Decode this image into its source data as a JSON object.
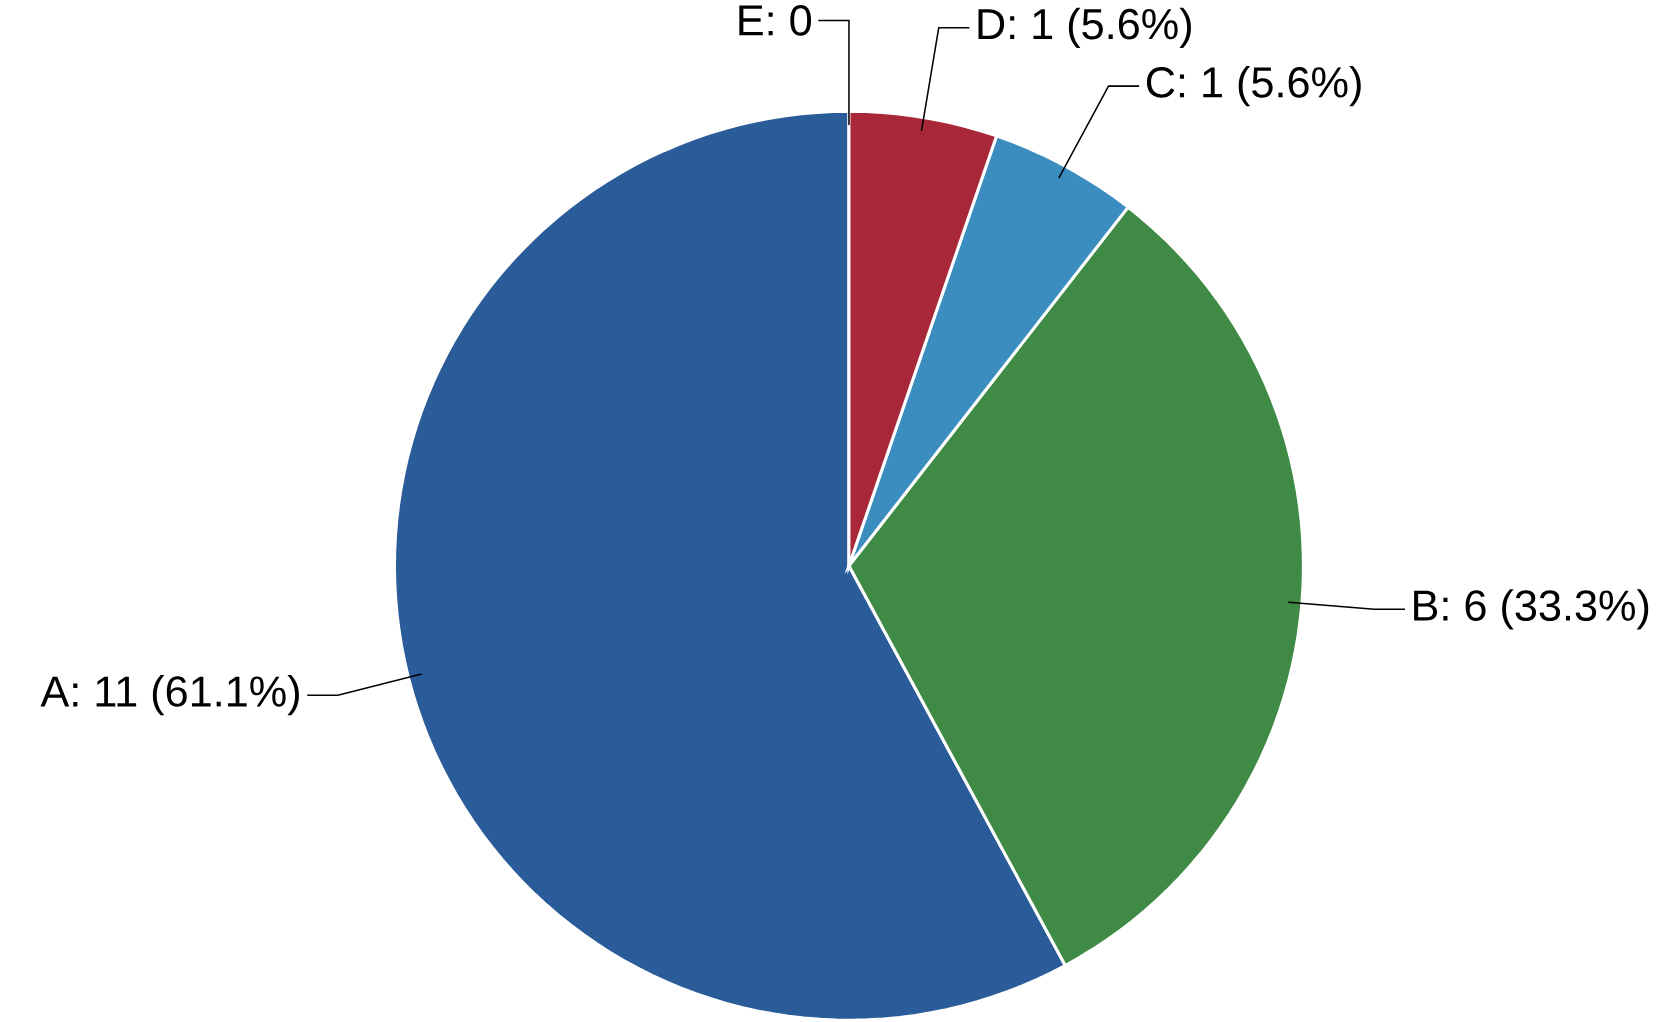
{
  "chart_data": {
    "type": "pie",
    "categories": [
      "A: 11  (61.1%)",
      "B: 6  (33.3%)",
      "C: 1  (5.6%)",
      "D: 1  (5.6%)",
      "E: 0"
    ],
    "values": [
      11,
      6,
      1,
      1,
      0
    ],
    "colors": [
      "#2b5c9a",
      "#3f8a45",
      "#3b8dbf",
      "#a8283a",
      "#c0c0c0"
    ]
  }
}
